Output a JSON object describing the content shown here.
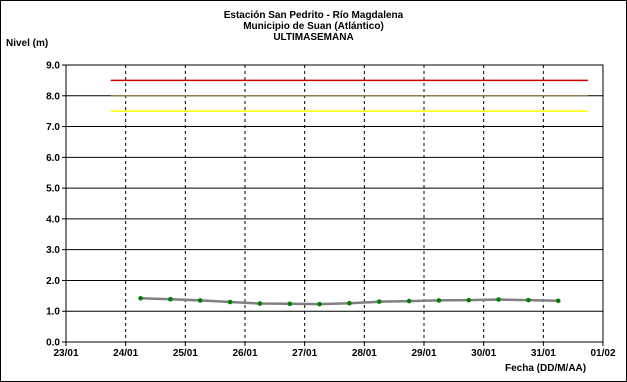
{
  "chart_data": {
    "type": "line",
    "title": "Estación San Pedrito - Río Magdalena",
    "subtitle": "Municipio de Suan (Atlántico)",
    "subtitle2": "ULTIMASEMANA",
    "ylabel": "Nivel (m)",
    "xlabel": "Fecha (DD/M/AA)",
    "ylim": [
      0,
      9
    ],
    "yticks": [
      "0.0",
      "1.0",
      "2.0",
      "3.0",
      "4.0",
      "5.0",
      "6.0",
      "7.0",
      "8.0",
      "9.0"
    ],
    "xlim": [
      "2015-01-23",
      "2015-02-01"
    ],
    "xticks": [
      "23/01",
      "24/01",
      "25/01",
      "26/01",
      "27/01",
      "28/01",
      "29/01",
      "30/01",
      "31/01",
      "01/02"
    ],
    "grid": true,
    "series": [
      {
        "color": "#808080",
        "marker_color": "#008000",
        "x": [
          "2015-01-24 06:00",
          "2015-01-24 18:00",
          "2015-01-25 06:00",
          "2015-01-25 18:00",
          "2015-01-26 06:00",
          "2015-01-26 18:00",
          "2015-01-27 06:00",
          "2015-01-27 18:00",
          "2015-01-28 06:00",
          "2015-01-28 18:00",
          "2015-01-29 06:00",
          "2015-01-29 18:00",
          "2015-01-30 06:00",
          "2015-01-30 18:00",
          "2015-01-31 06:00"
        ],
        "values": [
          1.42,
          1.39,
          1.35,
          1.3,
          1.25,
          1.24,
          1.23,
          1.26,
          1.31,
          1.33,
          1.35,
          1.36,
          1.38,
          1.36,
          1.34
        ]
      }
    ],
    "thresholds": [
      {
        "value": 8.5,
        "color": "#cc0000"
      },
      {
        "value": 8.0,
        "color": "#8b7d55"
      },
      {
        "value": 7.5,
        "color": "#ffff00"
      }
    ],
    "threshold_x_range": [
      "2015-01-23 18:00",
      "2015-01-31 18:00"
    ]
  }
}
